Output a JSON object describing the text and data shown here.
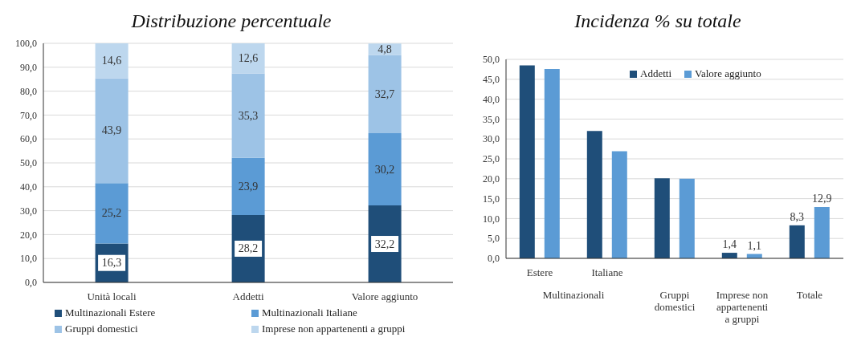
{
  "chart_data": [
    {
      "type": "bar",
      "title": "Distribuzione percentuale",
      "stacked": true,
      "categories": [
        "Unità locali",
        "Addetti",
        "Valore aggiunto"
      ],
      "series": [
        {
          "name": "Multinazionali Estere",
          "color": "#1f4e79",
          "values": [
            16.3,
            28.2,
            32.2
          ],
          "value_labels": [
            "16,3",
            "28,2",
            "32,2"
          ]
        },
        {
          "name": "Multinazionali Italiane",
          "color": "#5b9bd5",
          "values": [
            25.2,
            23.9,
            30.2
          ],
          "value_labels": [
            "25,2",
            "23,9",
            "30,2"
          ]
        },
        {
          "name": "Gruppi domestici",
          "color": "#9dc3e6",
          "values": [
            43.9,
            35.3,
            32.7
          ],
          "value_labels": [
            "43,9",
            "35,3",
            "32,7"
          ]
        },
        {
          "name": "Imprese non appartenenti a gruppi",
          "color": "#bdd7ee",
          "values": [
            14.6,
            12.6,
            4.8
          ],
          "value_labels": [
            "14,6",
            "12,6",
            "4,8"
          ]
        }
      ],
      "ylim": [
        0,
        100
      ],
      "yticks": [
        {
          "value": 0,
          "label": "0,0"
        },
        {
          "value": 10,
          "label": "10,0"
        },
        {
          "value": 20,
          "label": "20,0"
        },
        {
          "value": 30,
          "label": "30,0"
        },
        {
          "value": 40,
          "label": "40,0"
        },
        {
          "value": 50,
          "label": "50,0"
        },
        {
          "value": 60,
          "label": "60,0"
        },
        {
          "value": 70,
          "label": "70,0"
        },
        {
          "value": 80,
          "label": "80,0"
        },
        {
          "value": 90,
          "label": "90,0"
        },
        {
          "value": 100,
          "label": "100,0"
        }
      ],
      "grid": "y",
      "legend": "bottom"
    },
    {
      "type": "bar",
      "title": "Incidenza % su totale",
      "categories": [
        "Estere",
        "Italiane",
        "Gruppi domestici",
        "Imprese non appartenenti a gruppi",
        "Totale"
      ],
      "series": [
        {
          "name": "Addetti",
          "color": "#1f4e79",
          "values": [
            48.5,
            32.0,
            20.1,
            1.4,
            8.3
          ],
          "value_labels": [
            null,
            null,
            null,
            "1,4",
            "8,3"
          ]
        },
        {
          "name": "Valore aggiunto",
          "color": "#5b9bd5",
          "values": [
            47.6,
            26.9,
            20.0,
            1.1,
            12.9
          ],
          "value_labels": [
            null,
            null,
            null,
            "1,1",
            "12,9"
          ]
        }
      ],
      "ylim": [
        0,
        50
      ],
      "yticks": [
        {
          "value": 0,
          "label": "0,0"
        },
        {
          "value": 5,
          "label": "5,0"
        },
        {
          "value": 10,
          "label": "10,0"
        },
        {
          "value": 15,
          "label": "15,0"
        },
        {
          "value": 20,
          "label": "20,0"
        },
        {
          "value": 25,
          "label": "25,0"
        },
        {
          "value": 30,
          "label": "30,0"
        },
        {
          "value": 35,
          "label": "35,0"
        },
        {
          "value": 40,
          "label": "40,0"
        },
        {
          "value": 45,
          "label": "45,0"
        },
        {
          "value": 50,
          "label": "50,0"
        }
      ],
      "grid": "y",
      "legend": "top right",
      "annotations": [
        "Multinazionali"
      ]
    }
  ]
}
